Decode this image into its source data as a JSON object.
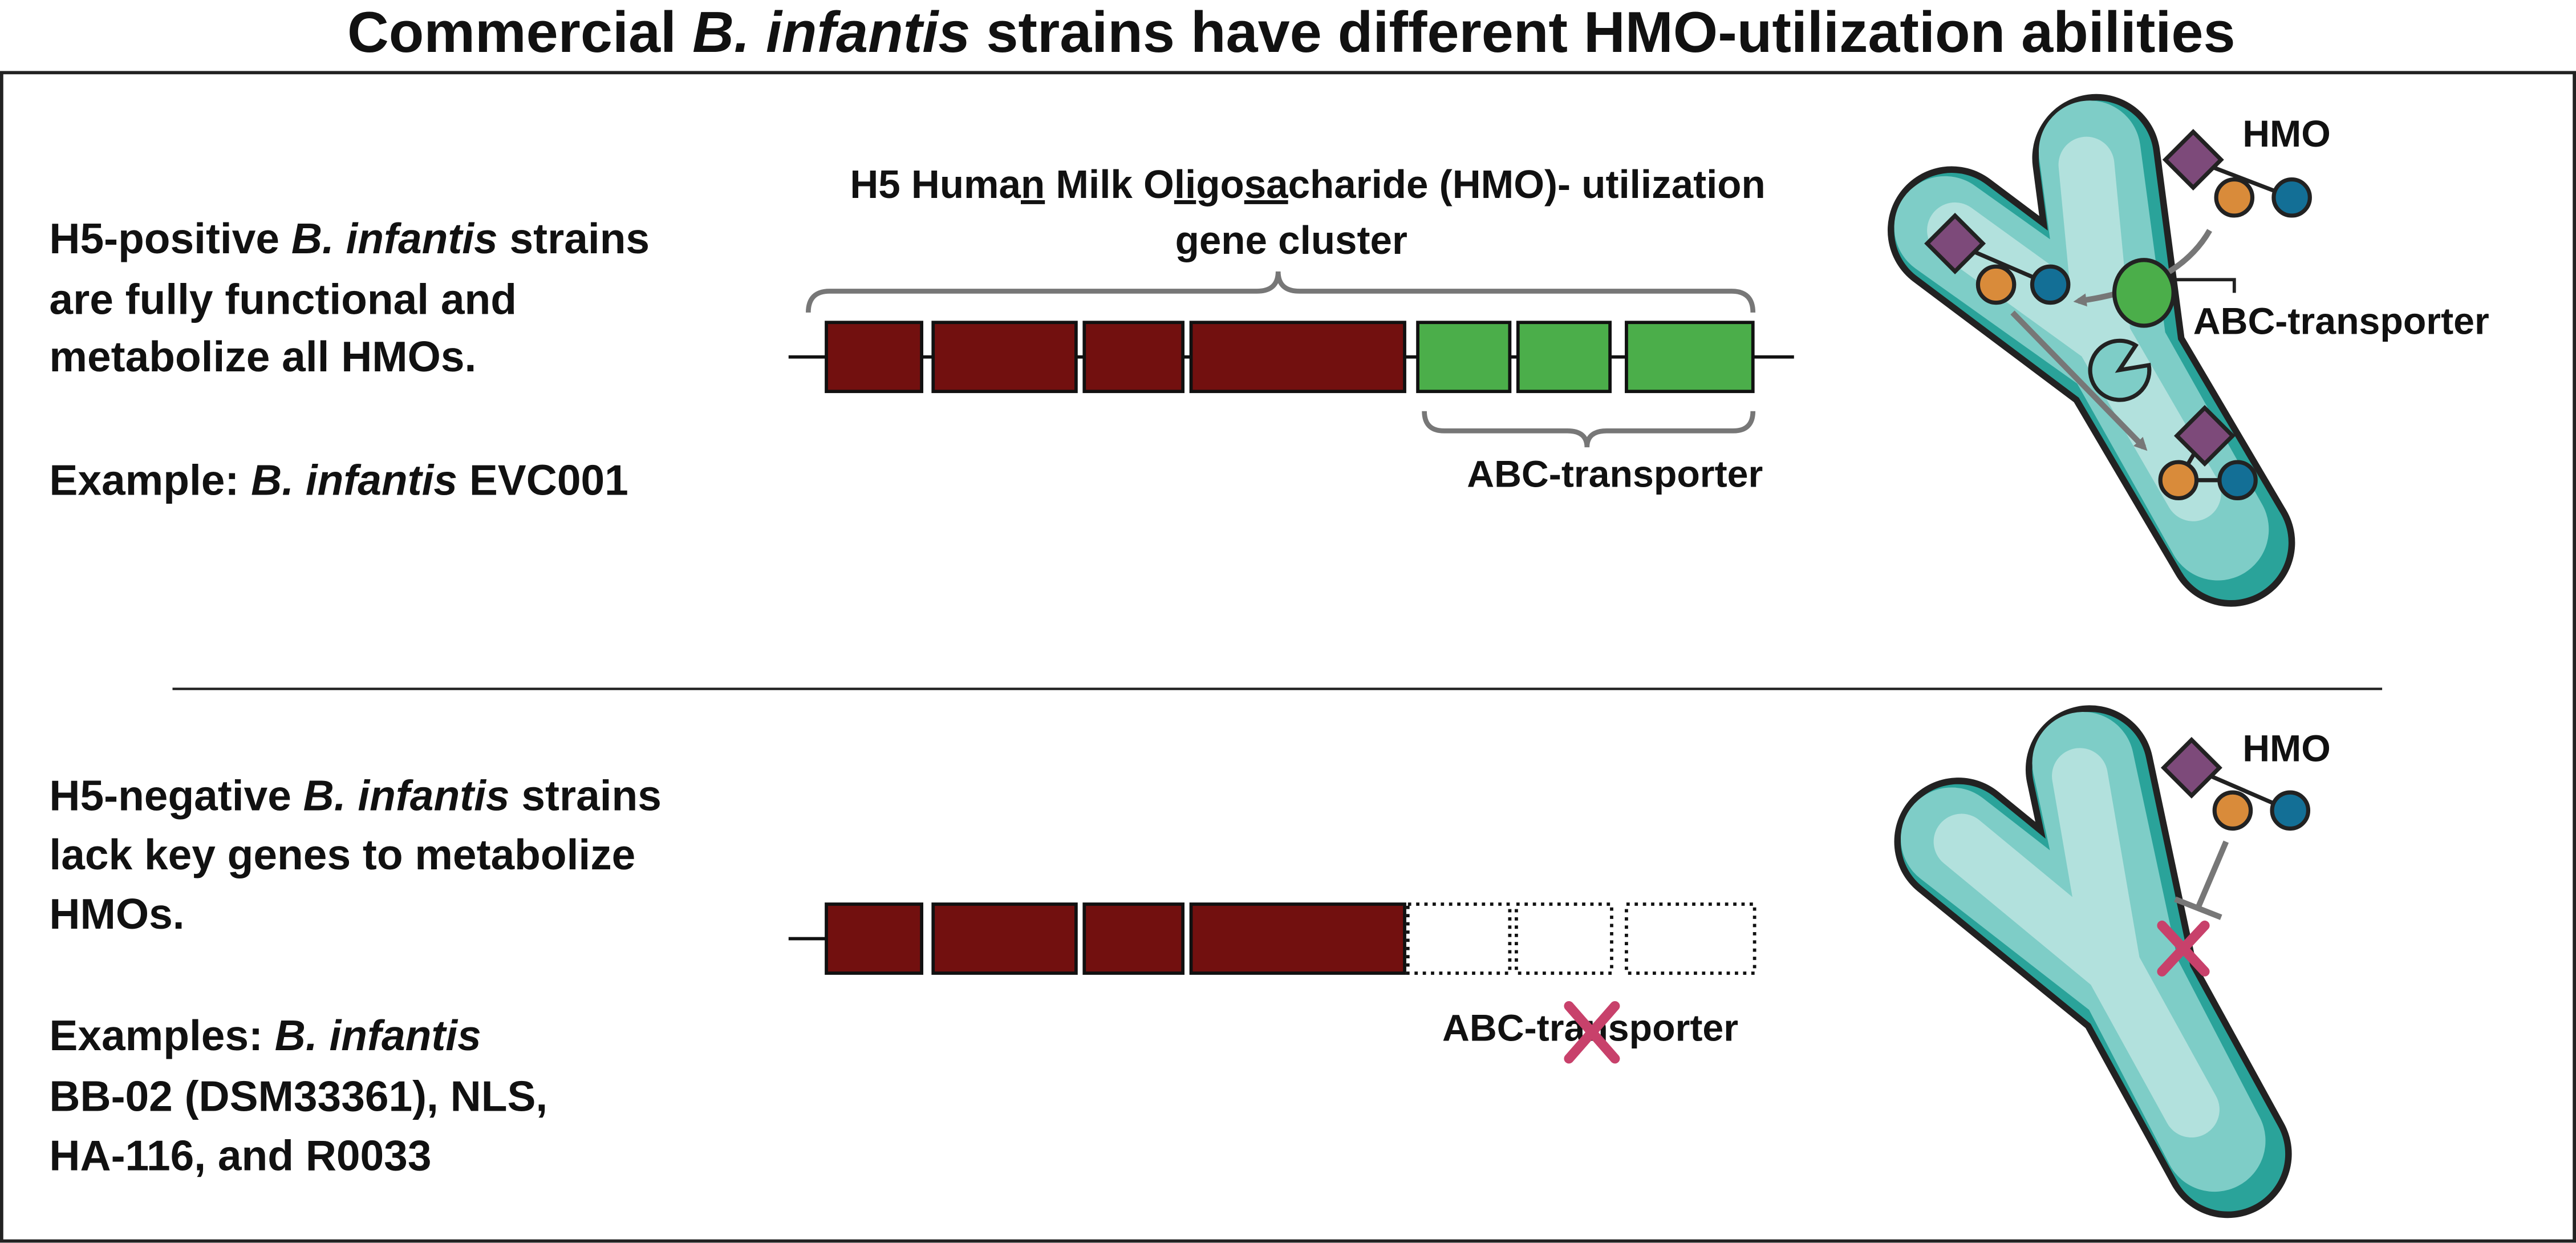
{
  "title": [
    "Commercial ",
    "B. infantis",
    " strains have different HMO-utilization abilities"
  ],
  "top": {
    "description": [
      [
        "H5-positive ",
        "B. infantis",
        " strains"
      ],
      [
        "are fully functional and"
      ],
      [
        "metabolize all HMOs."
      ]
    ],
    "example": [
      "Example: ",
      "B. infantis",
      " EVC001"
    ],
    "cluster_label": [
      [
        "H5 Huma",
        "n",
        " Milk O",
        "li",
        "go",
        "sa",
        "charide (HMO)- utilization"
      ],
      [
        "gene cluster"
      ]
    ],
    "transporter_label": "ABC-transporter",
    "cell_hmo_label": "HMO",
    "cell_transporter_label": "ABC-transporter"
  },
  "bottom": {
    "description": [
      [
        "H5-negative ",
        "B. infantis",
        " strains"
      ],
      [
        "lack key genes to metabolize"
      ],
      [
        "HMOs."
      ]
    ],
    "examples": [
      [
        "Examples: ",
        "B. infantis"
      ],
      [
        "BB-02 (DSM33361), NLS,"
      ],
      [
        "HA-116, and R0033"
      ]
    ],
    "transporter_label": "ABC-transporter",
    "cell_hmo_label": "HMO"
  }
}
